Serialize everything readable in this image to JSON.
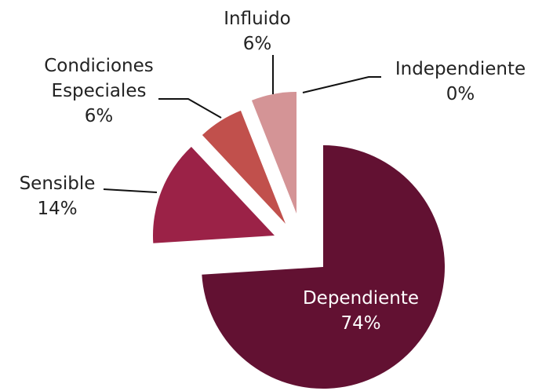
{
  "chart_data": {
    "type": "pie",
    "categories": [
      "Dependiente",
      "Sensible",
      "Condiciones Especiales",
      "Influido",
      "Independiente"
    ],
    "values": [
      74,
      14,
      6,
      6,
      0
    ],
    "value_labels": [
      "74%",
      "14%",
      "6%",
      "6%",
      "0%"
    ],
    "colors": [
      "#621132",
      "#9b2247",
      "#c1504c",
      "#d49496",
      "#e8c8c8"
    ]
  }
}
